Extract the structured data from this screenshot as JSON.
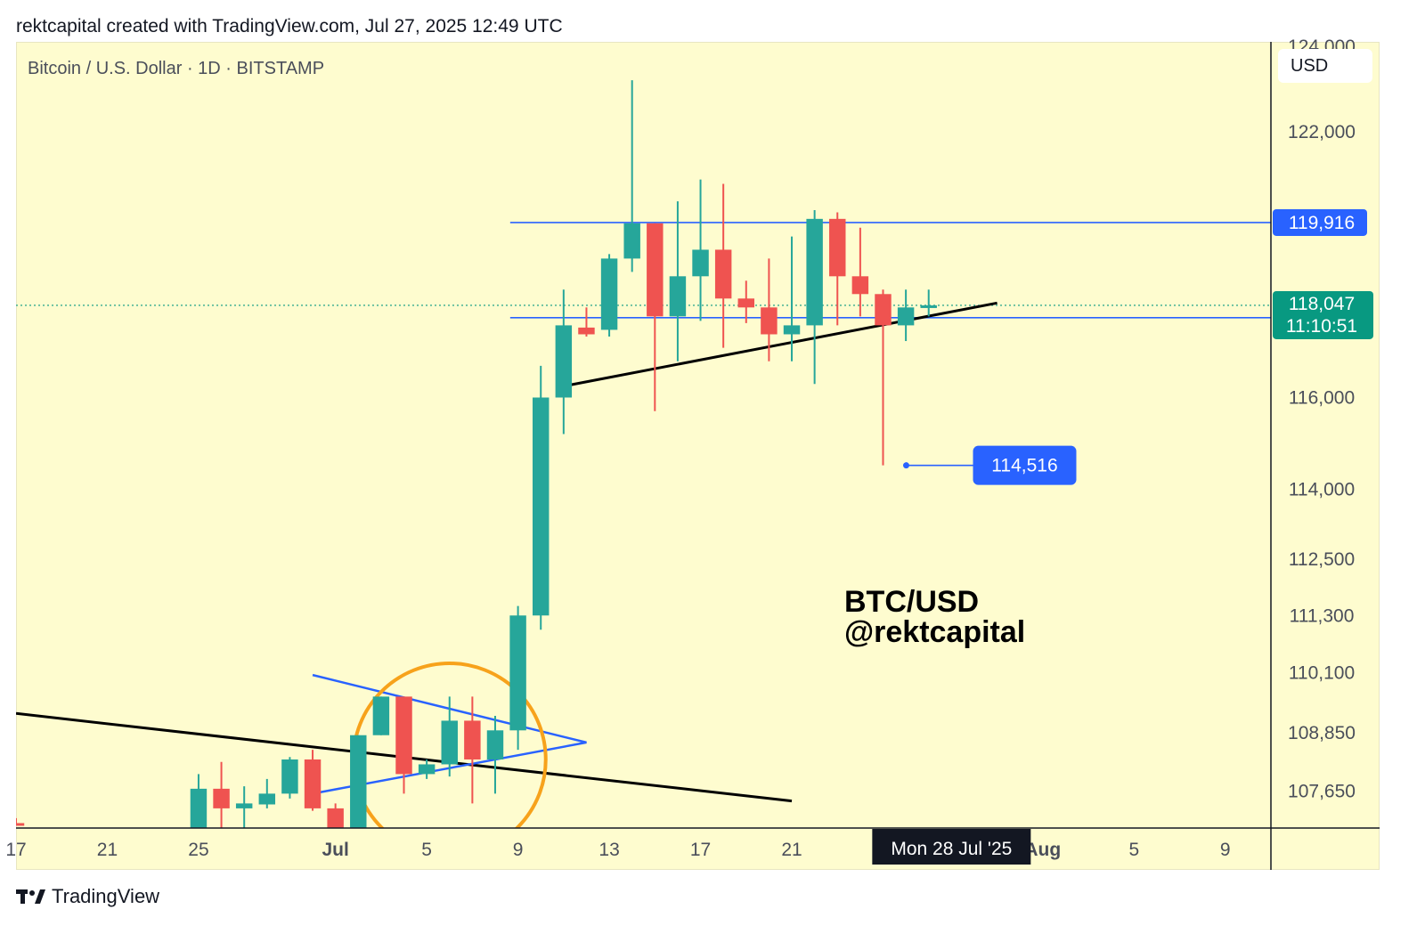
{
  "header": {
    "credit": "rektcapital created with TradingView.com, Jul 27, 2025 12:49 UTC"
  },
  "symbol": {
    "title": "Bitcoin / U.S. Dollar · 1D · BITSTAMP",
    "currency": "USD"
  },
  "watermark": {
    "line1": "BTC/USD",
    "line2": "@rektcapital"
  },
  "footer": {
    "brand": "TradingView",
    "logo_icon": "tradingview-logo-icon"
  },
  "colors": {
    "up": "#26a69a",
    "down": "#ef5350",
    "background": "#fefccf",
    "level_blue": "#2962ff",
    "trendline": "#000000",
    "circle": "#f7a21b",
    "price_tag": "#089981"
  },
  "chart_data": {
    "type": "candlestick",
    "title": "Bitcoin / U.S. Dollar · 1D · BITSTAMP",
    "currency": "USD",
    "y_scale": "log",
    "ylim": [
      106900,
      124100
    ],
    "xlim": [
      "2025-06-17",
      "2025-08-11"
    ],
    "y_ticks": [
      {
        "value": 124000,
        "label": "124,000"
      },
      {
        "value": 122000,
        "label": "122,000"
      },
      {
        "value": 116000,
        "label": "116,000"
      },
      {
        "value": 114000,
        "label": "114,000"
      },
      {
        "value": 112500,
        "label": "112,500"
      },
      {
        "value": 111300,
        "label": "111,300"
      },
      {
        "value": 110100,
        "label": "110,100"
      },
      {
        "value": 108850,
        "label": "108,850"
      },
      {
        "value": 107650,
        "label": "107,650"
      }
    ],
    "x_ticks": [
      {
        "date": "2025-06-17",
        "label": "17"
      },
      {
        "date": "2025-06-21",
        "label": "21"
      },
      {
        "date": "2025-06-25",
        "label": "25"
      },
      {
        "date": "2025-07-01",
        "label": "Jul"
      },
      {
        "date": "2025-07-05",
        "label": "5"
      },
      {
        "date": "2025-07-09",
        "label": "9"
      },
      {
        "date": "2025-07-13",
        "label": "13"
      },
      {
        "date": "2025-07-17",
        "label": "17"
      },
      {
        "date": "2025-07-21",
        "label": "21"
      },
      {
        "date": "2025-08-01",
        "label": "Aug"
      },
      {
        "date": "2025-08-05",
        "label": "5"
      },
      {
        "date": "2025-08-09",
        "label": "9"
      }
    ],
    "candles": [
      {
        "date": "2025-06-17",
        "open": 107000,
        "high": 107100,
        "low": 106950,
        "close": 106980
      },
      {
        "date": "2025-06-25",
        "open": 106900,
        "high": 108000,
        "low": 106900,
        "close": 107700
      },
      {
        "date": "2025-06-26",
        "open": 107700,
        "high": 108250,
        "low": 106900,
        "close": 107300
      },
      {
        "date": "2025-06-27",
        "open": 107300,
        "high": 107750,
        "low": 106900,
        "close": 107400
      },
      {
        "date": "2025-06-28",
        "open": 107380,
        "high": 107900,
        "low": 107300,
        "close": 107600
      },
      {
        "date": "2025-06-29",
        "open": 107600,
        "high": 108350,
        "low": 107500,
        "close": 108300
      },
      {
        "date": "2025-06-30",
        "open": 108300,
        "high": 108500,
        "low": 107250,
        "close": 107300
      },
      {
        "date": "2025-07-01",
        "open": 107300,
        "high": 107400,
        "low": 106900,
        "close": 106900
      },
      {
        "date": "2025-07-02",
        "open": 106900,
        "high": 108800,
        "low": 106900,
        "close": 108800
      },
      {
        "date": "2025-07-03",
        "open": 108800,
        "high": 109600,
        "low": 108800,
        "close": 109600
      },
      {
        "date": "2025-07-04",
        "open": 109600,
        "high": 109600,
        "low": 107600,
        "close": 108000
      },
      {
        "date": "2025-07-05",
        "open": 108000,
        "high": 108300,
        "low": 107900,
        "close": 108200
      },
      {
        "date": "2025-07-06",
        "open": 108200,
        "high": 109600,
        "low": 107950,
        "close": 109100
      },
      {
        "date": "2025-07-07",
        "open": 109100,
        "high": 109600,
        "low": 107400,
        "close": 108300
      },
      {
        "date": "2025-07-08",
        "open": 108300,
        "high": 109200,
        "low": 107600,
        "close": 108900
      },
      {
        "date": "2025-07-09",
        "open": 108900,
        "high": 111500,
        "low": 108500,
        "close": 111300
      },
      {
        "date": "2025-07-10",
        "open": 111300,
        "high": 116700,
        "low": 111000,
        "close": 116000
      },
      {
        "date": "2025-07-11",
        "open": 116000,
        "high": 118400,
        "low": 115200,
        "close": 117600
      },
      {
        "date": "2025-07-12",
        "open": 117550,
        "high": 118000,
        "low": 117350,
        "close": 117400
      },
      {
        "date": "2025-07-13",
        "open": 117500,
        "high": 119200,
        "low": 117350,
        "close": 119100
      },
      {
        "date": "2025-07-14",
        "open": 119100,
        "high": 123200,
        "low": 118800,
        "close": 119900
      },
      {
        "date": "2025-07-15",
        "open": 119900,
        "high": 119900,
        "low": 115700,
        "close": 117800
      },
      {
        "date": "2025-07-16",
        "open": 117800,
        "high": 120400,
        "low": 116800,
        "close": 118700
      },
      {
        "date": "2025-07-17",
        "open": 118700,
        "high": 120900,
        "low": 117700,
        "close": 119300
      },
      {
        "date": "2025-07-18",
        "open": 119300,
        "high": 120800,
        "low": 117100,
        "close": 118200
      },
      {
        "date": "2025-07-19",
        "open": 118200,
        "high": 118600,
        "low": 117650,
        "close": 118000
      },
      {
        "date": "2025-07-20",
        "open": 118000,
        "high": 119100,
        "low": 116800,
        "close": 117400
      },
      {
        "date": "2025-07-21",
        "open": 117400,
        "high": 119600,
        "low": 116800,
        "close": 117600
      },
      {
        "date": "2025-07-22",
        "open": 117600,
        "high": 120200,
        "low": 116300,
        "close": 120000
      },
      {
        "date": "2025-07-23",
        "open": 120000,
        "high": 120150,
        "low": 117600,
        "close": 118700
      },
      {
        "date": "2025-07-24",
        "open": 118700,
        "high": 119800,
        "low": 117800,
        "close": 118300
      },
      {
        "date": "2025-07-25",
        "open": 118300,
        "high": 118400,
        "low": 114516,
        "close": 117600
      },
      {
        "date": "2025-07-26",
        "open": 117600,
        "high": 118400,
        "low": 117250,
        "close": 118000
      },
      {
        "date": "2025-07-27",
        "open": 118000,
        "high": 118400,
        "low": 117800,
        "close": 118047
      }
    ],
    "horizontal_levels": [
      {
        "value": 119916,
        "label": "119,916"
      },
      {
        "value": 117771,
        "label": "117,771"
      }
    ],
    "current_price": {
      "value": 118047,
      "label": "118,047",
      "countdown": "11:10:51"
    },
    "annotations": [
      {
        "type": "price_note",
        "date": "2025-07-25",
        "value": 114516,
        "label": "114,516"
      },
      {
        "type": "trendline",
        "from": {
          "date": "2025-06-17",
          "value": 109250
        },
        "to": {
          "date": "2025-07-21",
          "value": 107450
        }
      },
      {
        "type": "trendline",
        "from": {
          "date": "2025-07-11",
          "value": 116250
        },
        "to": {
          "date": "2025-07-30",
          "value": 118100
        }
      },
      {
        "type": "triangle",
        "top": {
          "date": "2025-06-30",
          "value": 110050
        },
        "bottom": {
          "date": "2025-06-30",
          "value": 107600
        },
        "apex": {
          "date": "2025-07-12",
          "value": 108650
        }
      },
      {
        "type": "circle",
        "center": {
          "date": "2025-07-06",
          "value": 108300
        }
      }
    ],
    "crosshair_date_label": "Mon 28 Jul '25",
    "grid": false
  }
}
